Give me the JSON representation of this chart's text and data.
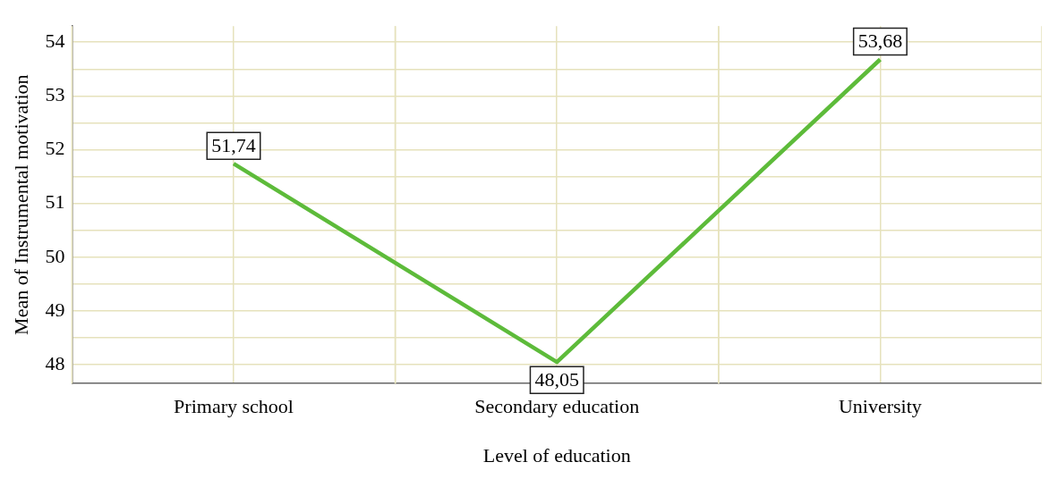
{
  "chart_data": {
    "type": "line",
    "xlabel": "Level of education",
    "ylabel": "Mean of Instrumental motivation",
    "categories": [
      "Primary school",
      "Secondary education",
      "University"
    ],
    "series": [
      {
        "color": "#5dbb3a",
        "values": [
          51.74,
          48.05,
          53.68
        ],
        "value_labels": [
          "51,74",
          "48,05",
          "53,68"
        ]
      }
    ],
    "ylim": [
      47.65,
      54.3
    ],
    "yticks": [
      48,
      {
        "value": 48.5,
        "label": null
      },
      49,
      {
        "value": 49.5,
        "label": null
      },
      50,
      {
        "value": 50.5,
        "label": null
      },
      51,
      {
        "value": 51.5,
        "label": null
      },
      52,
      {
        "value": 52.5,
        "label": null
      },
      53,
      {
        "value": 53.5,
        "label": null
      },
      54
    ],
    "grid": true,
    "legend": false,
    "marker": "none",
    "line_style": "solid"
  }
}
